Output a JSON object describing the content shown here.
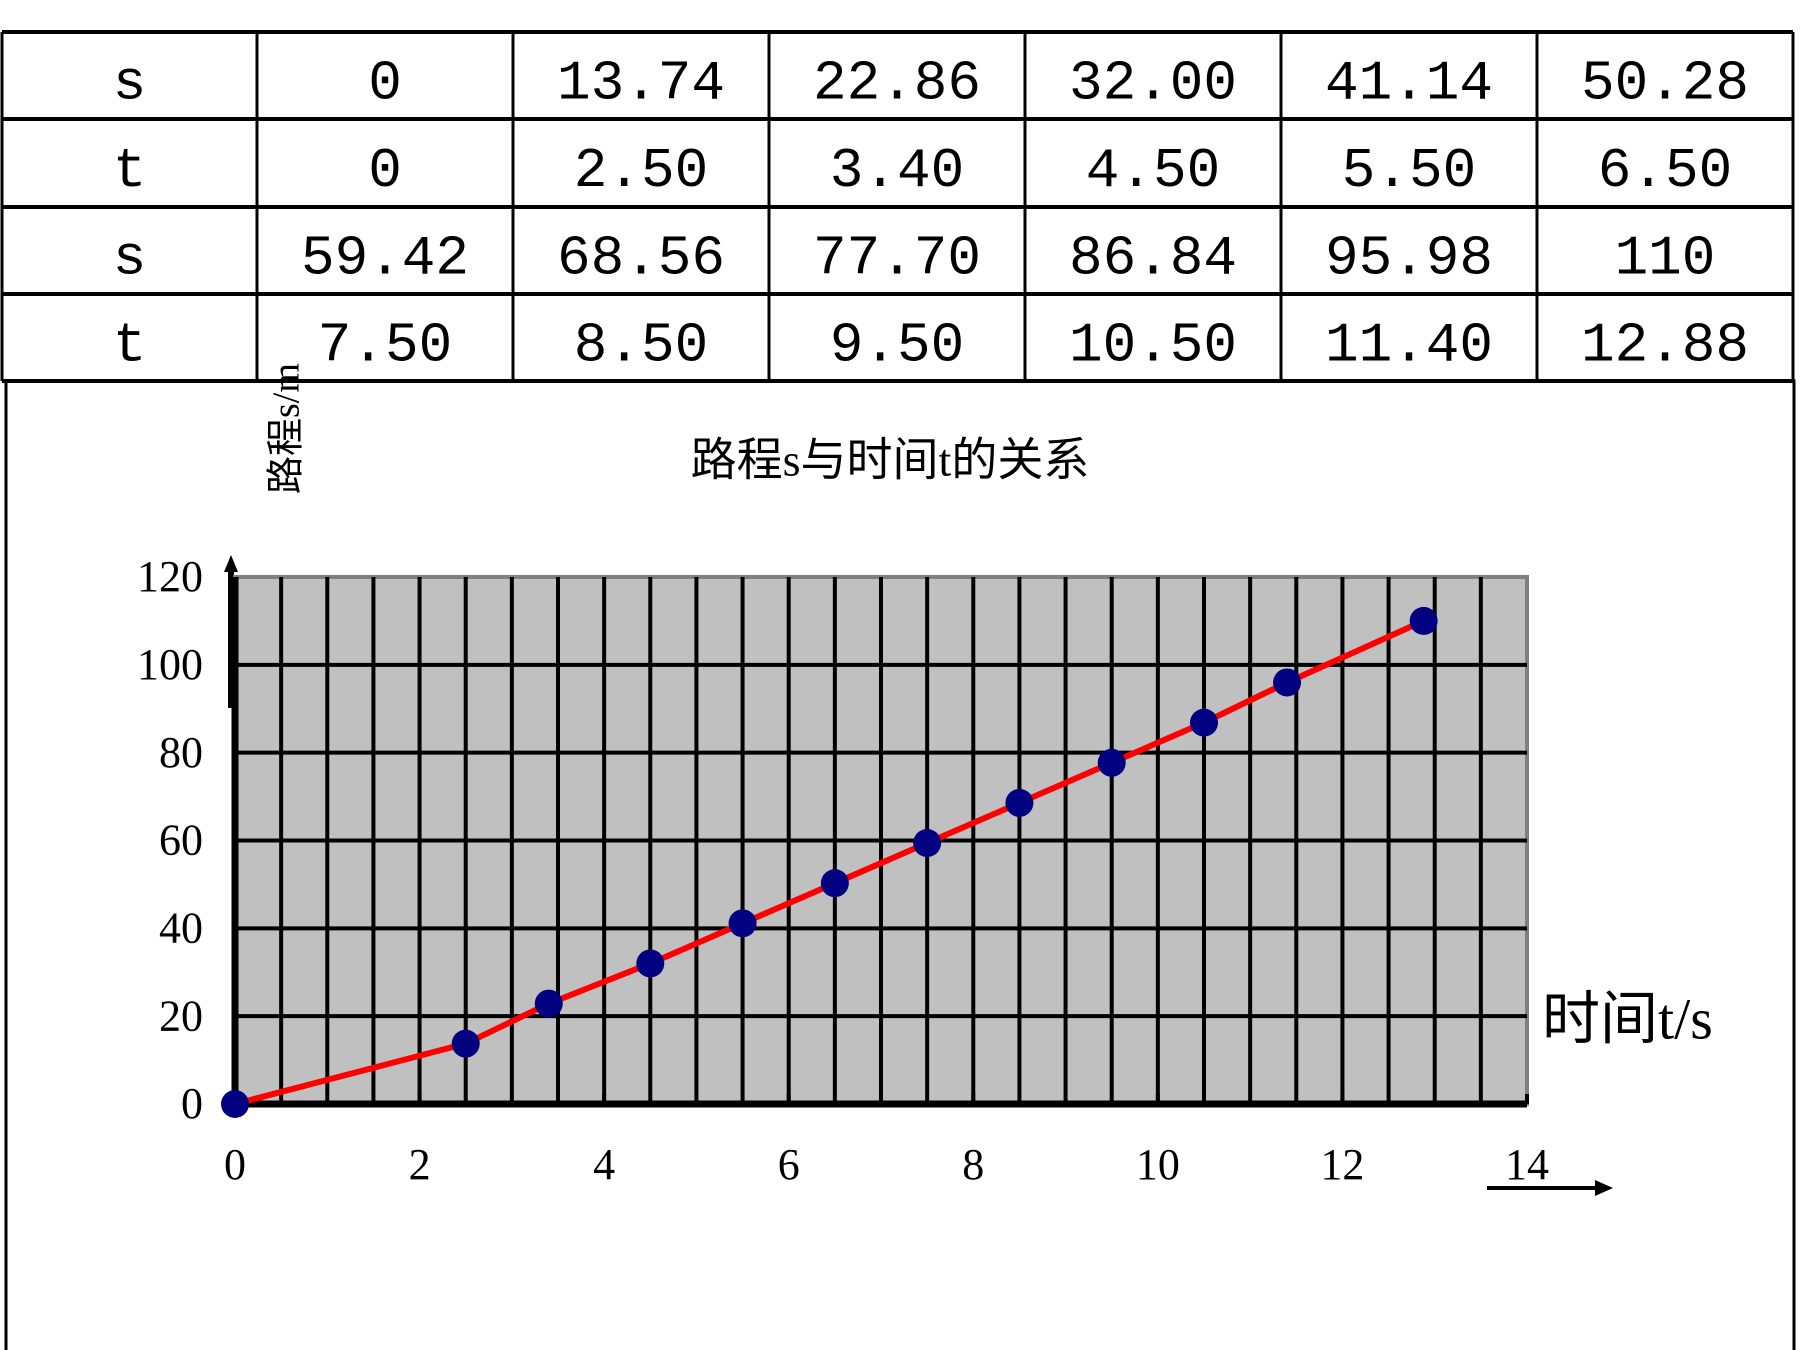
{
  "table": {
    "rows": [
      [
        "s",
        "0",
        "13.74",
        "22.86",
        "32.00",
        "41.14",
        "50.28"
      ],
      [
        "t",
        "0",
        "2.50",
        "3.40",
        "4.50",
        "5.50",
        "6.50"
      ],
      [
        "s",
        "59.42",
        "68.56",
        "77.70",
        "86.84",
        "95.98",
        "110"
      ],
      [
        "t",
        "7.50",
        "8.50",
        "9.50",
        "10.50",
        "11.40",
        "12.88"
      ]
    ]
  },
  "chart_data": {
    "type": "line",
    "title": "路程s与时间t的关系",
    "y_label": "路程s/m",
    "x_label": "时间t/s",
    "x": [
      0,
      2.5,
      3.4,
      4.5,
      5.5,
      6.5,
      7.5,
      8.5,
      9.5,
      10.5,
      11.4,
      12.88
    ],
    "series": [
      {
        "name": "s",
        "color": "#ff0000",
        "marker_color": "#000080",
        "values": [
          0,
          13.74,
          22.86,
          32.0,
          41.14,
          50.28,
          59.42,
          68.56,
          77.7,
          86.84,
          95.98,
          110
        ]
      }
    ],
    "xlim": [
      0,
      14
    ],
    "ylim": [
      0,
      120
    ],
    "xticks": [
      0,
      2,
      4,
      6,
      8,
      10,
      12,
      14
    ],
    "yticks": [
      0,
      20,
      40,
      60,
      80,
      100,
      120
    ],
    "grid": true,
    "xgrid_step": 0.5,
    "plot_background": "#c0c0c0"
  }
}
